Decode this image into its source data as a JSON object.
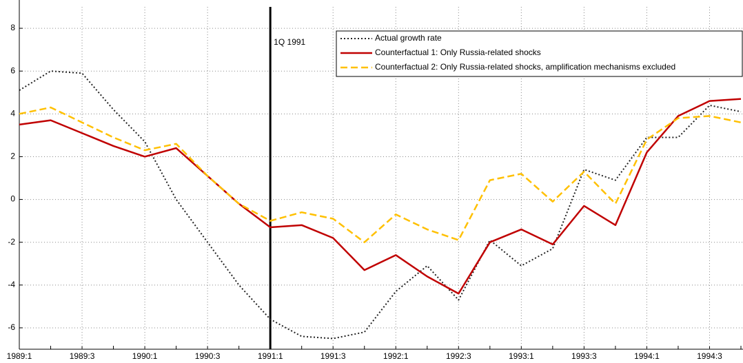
{
  "chart_data": {
    "type": "line",
    "categories": [
      "1989:1",
      null,
      "1989:3",
      null,
      "1990:1",
      null,
      "1990:3",
      null,
      "1991:1",
      null,
      "1991:3",
      null,
      "1992:1",
      null,
      "1992:3",
      null,
      "1993:1",
      null,
      "1993:3",
      null,
      "1994:1",
      null,
      "1994:3",
      null
    ],
    "series": [
      {
        "name": "Actual growth rate",
        "color": "#222222",
        "style": "dotted",
        "values": [
          5.1,
          6.0,
          5.9,
          4.2,
          2.7,
          0.0,
          -2.0,
          -4.0,
          -5.6,
          -6.4,
          -6.5,
          -6.2,
          -4.3,
          -3.1,
          -4.7,
          -1.9,
          -3.1,
          -2.3,
          1.4,
          0.9,
          2.9,
          2.9,
          4.4,
          4.1
        ]
      },
      {
        "name": "Counterfactual 1: Only Russia-related shocks",
        "color": "#c00000",
        "style": "solid",
        "values": [
          3.5,
          3.7,
          3.1,
          2.5,
          2.0,
          2.4,
          1.1,
          -0.2,
          -1.3,
          -1.2,
          -1.8,
          -3.3,
          -2.6,
          -3.6,
          -4.4,
          -2.0,
          -1.4,
          -2.1,
          -0.3,
          -1.2,
          2.2,
          3.9,
          4.6,
          4.7
        ]
      },
      {
        "name": "Counterfactual 2: Only Russia-related shocks, amplification mechanisms excluded",
        "color": "#ffc000",
        "style": "dashed",
        "values": [
          4.0,
          4.3,
          3.6,
          2.9,
          2.3,
          2.6,
          1.1,
          -0.2,
          -1.0,
          -0.6,
          -0.9,
          -2.0,
          -0.7,
          -1.4,
          -1.9,
          0.9,
          1.2,
          -0.1,
          1.3,
          -0.2,
          2.8,
          3.8,
          3.9,
          3.6
        ]
      }
    ],
    "ylim": [
      -7,
      9
    ],
    "yticks": [
      -6,
      -4,
      -2,
      0,
      2,
      4,
      6,
      8
    ],
    "grid": true,
    "legend": "top-right",
    "annotation": {
      "x": "1991:1",
      "label": "1Q 1991"
    }
  }
}
